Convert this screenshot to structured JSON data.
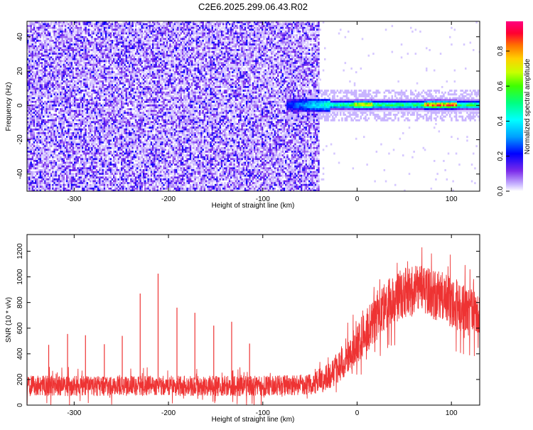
{
  "figure_title": "C2E6.2025.299.06.43.R02",
  "colors": {
    "snr_line": "#ee3333",
    "colormap": [
      "#ffffff",
      "#d8c8ff",
      "#8a3cf0",
      "#5a00e0",
      "#0000ff",
      "#00b8ff",
      "#00ffff",
      "#00ff40",
      "#c8ff00",
      "#ffcc00",
      "#ff5500",
      "#ff0060"
    ]
  },
  "chart_data": [
    {
      "type": "heatmap",
      "title": "",
      "xlabel": "Height of straight line (km)",
      "ylabel": "Frequency (Hz)",
      "xlim": [
        -350,
        130
      ],
      "ylim": [
        -50,
        49
      ],
      "xticks": [
        -300,
        -200,
        -100,
        0,
        100
      ],
      "yticks": [
        -40,
        -20,
        0,
        20,
        40
      ],
      "grid": false,
      "colorbar": {
        "label": "Normalized spectral amplitude",
        "range": [
          0,
          0.97
        ],
        "ticks": [
          "0.0",
          "0.2",
          "0.4",
          "0.6",
          "0.8"
        ]
      },
      "features": {
        "noise_region_x": [
          -350,
          -40
        ],
        "noise_amplitude_typical": [
          0.02,
          0.12
        ],
        "ridge_frequency_hz": 0.8,
        "ridge_start_x": -75,
        "ridge_end_x": 130,
        "ridge_peak_amplitude_x": [
          70,
          105
        ]
      }
    },
    {
      "type": "line",
      "title": "",
      "xlabel": "Height of straight line (km)",
      "ylabel": "SNR (10 * v/v)",
      "xlim": [
        -350,
        130
      ],
      "ylim": [
        0,
        1330
      ],
      "xticks": [
        -300,
        -200,
        -100,
        0,
        100
      ],
      "yticks": [
        0,
        200,
        400,
        600,
        800,
        1000,
        1200
      ],
      "grid": false,
      "series": [
        {
          "x": [
            -350,
            -300,
            -250,
            -200,
            -150,
            -100,
            -50,
            -30,
            -10,
            10,
            30,
            50,
            70,
            90,
            110,
            130
          ],
          "values": [
            150,
            150,
            150,
            150,
            150,
            150,
            160,
            220,
            380,
            580,
            780,
            880,
            890,
            840,
            760,
            700
          ]
        }
      ],
      "band_halfwidth": [
        80,
        80,
        80,
        80,
        80,
        80,
        80,
        110,
        140,
        170,
        190,
        200,
        200,
        200,
        190,
        180
      ],
      "spikes": [
        {
          "x": -327,
          "value": 470
        },
        {
          "x": -307,
          "value": 555
        },
        {
          "x": -288,
          "value": 545
        },
        {
          "x": -268,
          "value": 475
        },
        {
          "x": -249,
          "value": 540
        },
        {
          "x": -230,
          "value": 870
        },
        {
          "x": -211,
          "value": 1025
        },
        {
          "x": -191,
          "value": 760
        },
        {
          "x": -172,
          "value": 720
        },
        {
          "x": -152,
          "value": 620
        },
        {
          "x": -133,
          "value": 650
        },
        {
          "x": -114,
          "value": 480
        }
      ]
    }
  ]
}
